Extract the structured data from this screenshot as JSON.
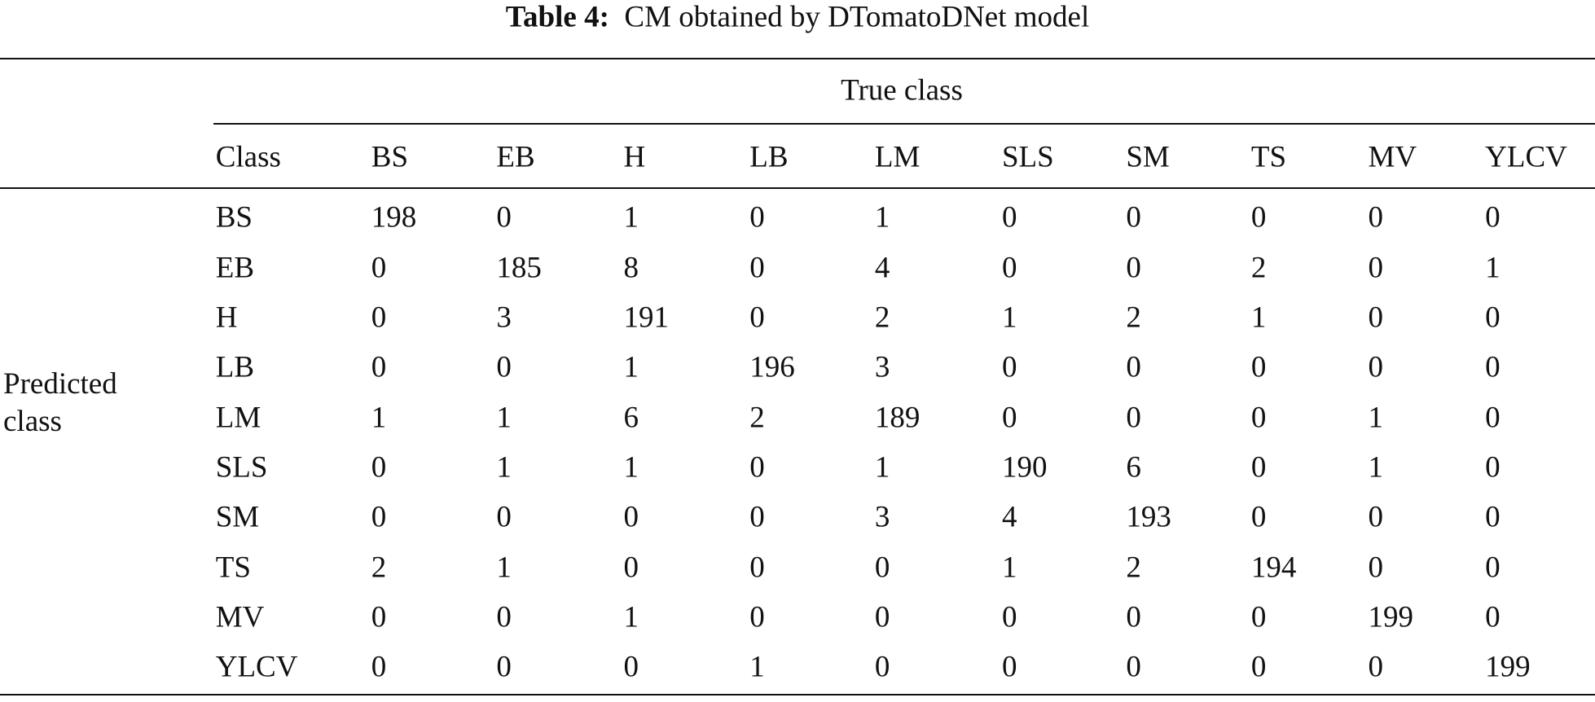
{
  "title": {
    "label": "Table 4:",
    "text": "CM obtained by DTomatoDNet model"
  },
  "table": {
    "column_group": "True class",
    "row_group": "Predicted class",
    "header": [
      "Class",
      "BS",
      "EB",
      "H",
      "LB",
      "LM",
      "SLS",
      "SM",
      "TS",
      "MV",
      "YLCV"
    ],
    "rows": [
      {
        "label": "BS",
        "values": [
          198,
          0,
          1,
          0,
          1,
          0,
          0,
          0,
          0,
          0
        ]
      },
      {
        "label": "EB",
        "values": [
          0,
          185,
          8,
          0,
          4,
          0,
          0,
          2,
          0,
          1
        ]
      },
      {
        "label": "H",
        "values": [
          0,
          3,
          191,
          0,
          2,
          1,
          2,
          1,
          0,
          0
        ]
      },
      {
        "label": "LB",
        "values": [
          0,
          0,
          1,
          196,
          3,
          0,
          0,
          0,
          0,
          0
        ]
      },
      {
        "label": "LM",
        "values": [
          1,
          1,
          6,
          2,
          189,
          0,
          0,
          0,
          1,
          0
        ]
      },
      {
        "label": "SLS",
        "values": [
          0,
          1,
          1,
          0,
          1,
          190,
          6,
          0,
          1,
          0
        ]
      },
      {
        "label": "SM",
        "values": [
          0,
          0,
          0,
          0,
          3,
          4,
          193,
          0,
          0,
          0
        ]
      },
      {
        "label": "TS",
        "values": [
          2,
          1,
          0,
          0,
          0,
          1,
          2,
          194,
          0,
          0
        ]
      },
      {
        "label": "MV",
        "values": [
          0,
          0,
          1,
          0,
          0,
          0,
          0,
          0,
          199,
          0
        ]
      },
      {
        "label": "YLCV",
        "values": [
          0,
          0,
          0,
          1,
          0,
          0,
          0,
          0,
          0,
          199
        ]
      }
    ]
  }
}
